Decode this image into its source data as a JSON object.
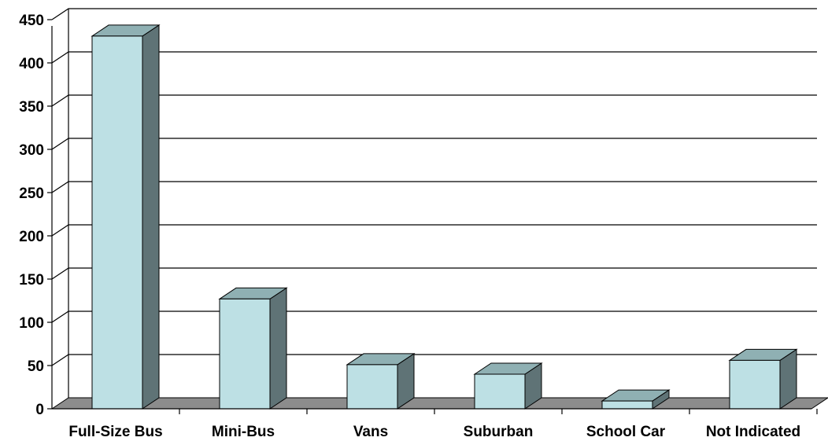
{
  "chart_data": {
    "type": "bar",
    "title": "",
    "xlabel": "",
    "ylabel": "",
    "categories": [
      "Full-Size Bus",
      "Mini-Bus",
      "Vans",
      "Suburban",
      "School Car",
      "Not Indicated"
    ],
    "values": [
      431,
      127,
      51,
      40,
      9,
      56
    ],
    "ylim": [
      0,
      450
    ],
    "yticks": [
      0,
      50,
      100,
      150,
      200,
      250,
      300,
      350,
      400,
      450
    ],
    "grid": true,
    "legend": "none",
    "style": "3d-column",
    "colors": {
      "bar_front": "#bde0e4",
      "bar_top": "#8fb0b3",
      "bar_side": "#5f7376",
      "floor": "#8c8c8c",
      "gridline": "#000000"
    }
  }
}
